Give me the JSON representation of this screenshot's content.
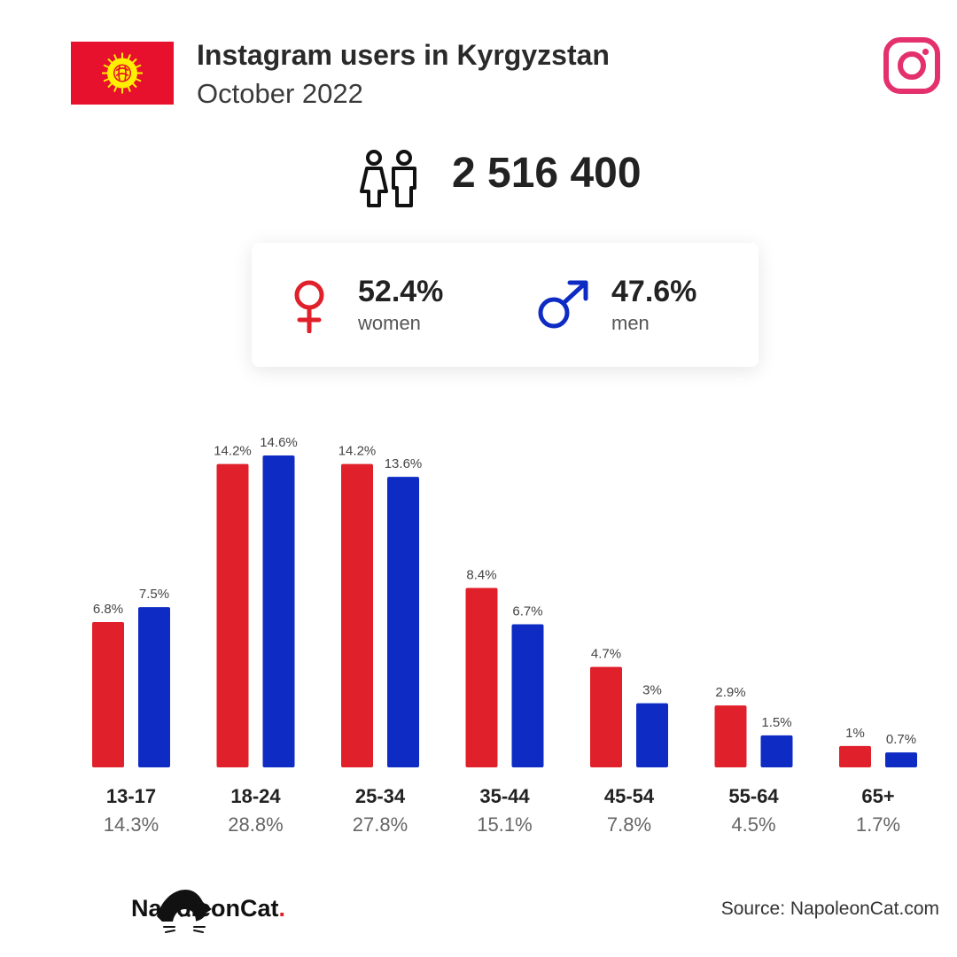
{
  "header": {
    "title": "Instagram users in Kyrgyzstan",
    "subtitle": "October 2022"
  },
  "total_users": "2 516 400",
  "gender": {
    "women_pct": "52.4%",
    "women_label": "women",
    "men_pct": "47.6%",
    "men_label": "men"
  },
  "colors": {
    "women": "#e0202a",
    "men": "#0e2cc4",
    "instagram": "#e4306c",
    "flag_red": "#e8112d",
    "flag_sun": "#ffef00"
  },
  "chart_data": {
    "type": "bar",
    "categories": [
      "13-17",
      "18-24",
      "25-34",
      "35-44",
      "45-54",
      "55-64",
      "65+"
    ],
    "category_totals": [
      "14.3%",
      "28.8%",
      "27.8%",
      "15.1%",
      "7.8%",
      "4.5%",
      "1.7%"
    ],
    "series": [
      {
        "name": "women",
        "values": [
          6.8,
          14.2,
          14.2,
          8.4,
          4.7,
          2.9,
          1
        ],
        "labels": [
          "6.8%",
          "14.2%",
          "14.2%",
          "8.4%",
          "4.7%",
          "2.9%",
          "1%"
        ]
      },
      {
        "name": "men",
        "values": [
          7.5,
          14.6,
          13.6,
          6.7,
          3,
          1.5,
          0.7
        ],
        "labels": [
          "7.5%",
          "14.6%",
          "13.6%",
          "6.7%",
          "3%",
          "1.5%",
          "0.7%"
        ]
      }
    ],
    "ylim": [
      0,
      14.6
    ],
    "grid": false
  },
  "footer": {
    "brand_name": "NapoleonCat",
    "brand_dot": ".",
    "source": "Source: NapoleonCat.com"
  }
}
